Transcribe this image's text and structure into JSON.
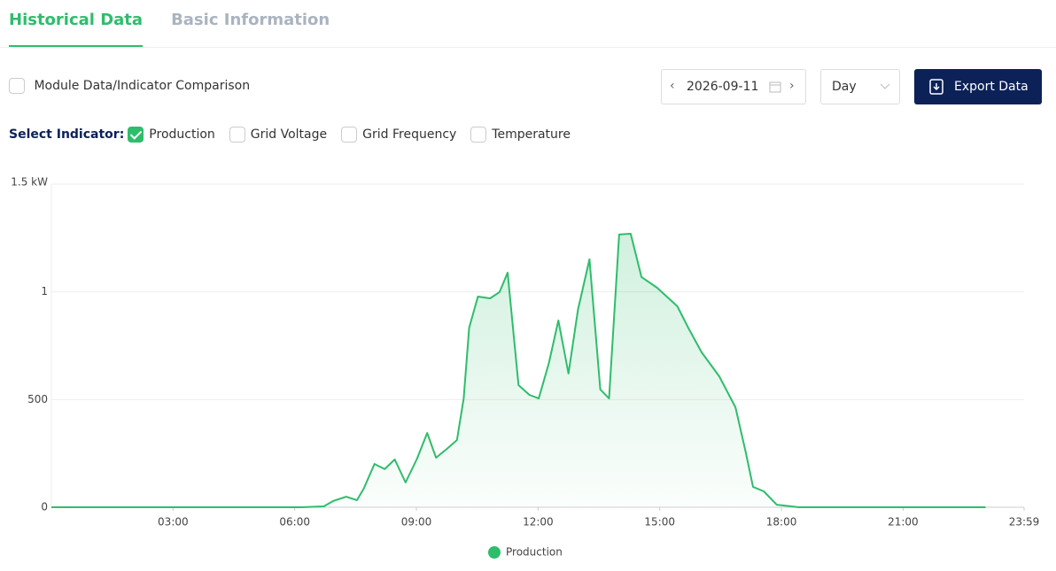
{
  "tabs": [
    {
      "label": "Historical Data",
      "active": true
    },
    {
      "label": "Basic Information",
      "active": false
    }
  ],
  "comparison": {
    "label": "Module Data/Indicator Comparison",
    "checked": false
  },
  "date": "2026-09-11",
  "period": "Day",
  "export_button": "Export Data",
  "indicator_label": "Select Indicator:",
  "indicators": [
    {
      "label": "Production",
      "checked": true
    },
    {
      "label": "Grid Voltage",
      "checked": false
    },
    {
      "label": "Grid Frequency",
      "checked": false
    },
    {
      "label": "Temperature",
      "checked": false
    }
  ],
  "chart_data": {
    "type": "area",
    "x": [
      0,
      370,
      403,
      417,
      436,
      452,
      462,
      478,
      493,
      508,
      524,
      541,
      556,
      569,
      585,
      600,
      610,
      618,
      631,
      649,
      663,
      675,
      691,
      707,
      721,
      736,
      750,
      765,
      779,
      796,
      812,
      825,
      840,
      857,
      873,
      896,
      926,
      942,
      962,
      988,
      1012,
      1027,
      1038,
      1054,
      1073,
      1106,
      1382
    ],
    "series": [
      {
        "name": "Production",
        "color": "#2ebd6b",
        "values": [
          0,
          0,
          4,
          29,
          49,
          33,
          86,
          201,
          177,
          222,
          115,
          226,
          345,
          230,
          271,
          312,
          505,
          834,
          978,
          970,
          999,
          1089,
          567,
          522,
          505,
          670,
          867,
          621,
          917,
          1151,
          547,
          505,
          1266,
          1270,
          1069,
          1019,
          933,
          834,
          719,
          608,
          464,
          259,
          95,
          74,
          12,
          0,
          0
        ]
      }
    ],
    "xlim": [
      0,
      1439
    ],
    "xticks": [
      {
        "value": 180,
        "label": "03:00"
      },
      {
        "value": 360,
        "label": "06:00"
      },
      {
        "value": 540,
        "label": "09:00"
      },
      {
        "value": 720,
        "label": "12:00"
      },
      {
        "value": 900,
        "label": "15:00"
      },
      {
        "value": 1080,
        "label": "18:00"
      },
      {
        "value": 1260,
        "label": "21:00"
      },
      {
        "value": 1439,
        "label": "23:59"
      }
    ],
    "ylim": [
      0,
      1500
    ],
    "yticks": [
      0,
      500,
      {
        "value": 1000,
        "label": "1"
      },
      {
        "value": 1500,
        "label": "1.5 kW"
      }
    ],
    "grid": true,
    "legend": "bottom"
  }
}
